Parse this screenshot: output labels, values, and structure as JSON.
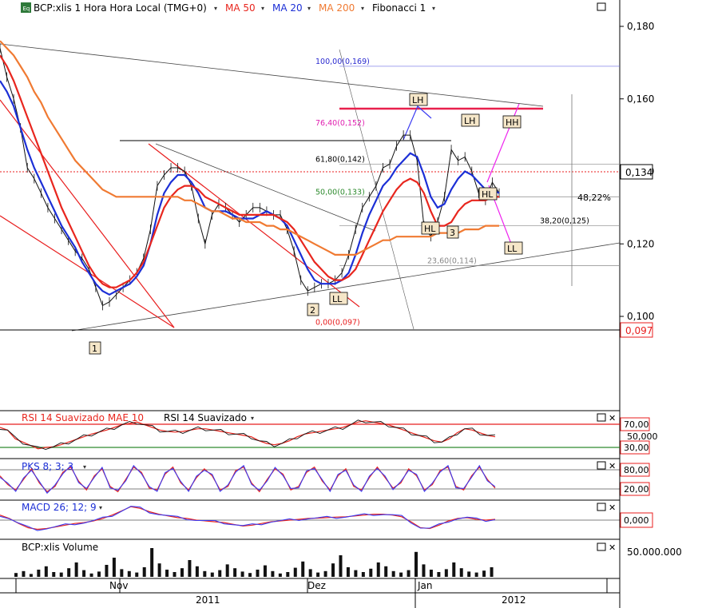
{
  "header": {
    "eq_badge": "Eq",
    "symbol": "BCP:xlis 1 Hora Hora Local (TMG+0)",
    "ma50": "MA 50",
    "ma20": "MA 20",
    "ma200": "MA 200",
    "fib": "Fibonacci 1"
  },
  "colors": {
    "ma50": "#e8261e",
    "ma20": "#1c2fd6",
    "ma200": "#f07a32",
    "fib": "#c040c0",
    "grid": "#999999"
  },
  "chart_data": [
    {
      "type": "line",
      "panel": "price",
      "y_ticks": [
        "0,180",
        "0,160",
        "0,140",
        "0,120",
        "0,100"
      ],
      "ylim": [
        0.091,
        0.184
      ],
      "last_price": "0,134",
      "support_price": "0,097",
      "fib_levels": [
        {
          "label": "100,00(0,169)",
          "value": 0.169
        },
        {
          "label": "76,40(0,152)",
          "value": 0.152
        },
        {
          "label": "61,80(0,142)",
          "value": 0.142
        },
        {
          "label": "50,00(0,133)",
          "value": 0.133
        },
        {
          "label": "38,20(0,125)",
          "value": 0.125
        },
        {
          "label": "23,60(0,114)",
          "value": 0.114
        },
        {
          "label": "0,00(0,097)",
          "value": 0.097
        }
      ],
      "annotations": [
        "LH",
        "LH",
        "HH",
        "HL",
        "HL",
        "LL",
        "LL",
        "1",
        "2",
        "3"
      ],
      "pct_label": "48,22%",
      "series": [
        {
          "name": "BCP:xlis",
          "values": [
            0.174,
            0.166,
            0.16,
            0.152,
            0.141,
            0.138,
            0.134,
            0.13,
            0.127,
            0.124,
            0.121,
            0.118,
            0.116,
            0.113,
            0.108,
            0.103,
            0.104,
            0.106,
            0.108,
            0.11,
            0.112,
            0.116,
            0.124,
            0.136,
            0.139,
            0.141,
            0.141,
            0.14,
            0.136,
            0.127,
            0.12,
            0.128,
            0.131,
            0.13,
            0.128,
            0.126,
            0.128,
            0.13,
            0.13,
            0.129,
            0.128,
            0.128,
            0.124,
            0.118,
            0.11,
            0.107,
            0.108,
            0.109,
            0.109,
            0.11,
            0.112,
            0.117,
            0.124,
            0.13,
            0.133,
            0.136,
            0.141,
            0.142,
            0.147,
            0.15,
            0.15,
            0.143,
            0.125,
            0.122,
            0.126,
            0.133,
            0.146,
            0.143,
            0.144,
            0.14,
            0.134,
            0.132,
            0.137,
            0.134
          ]
        },
        {
          "name": "MA 20",
          "values": [
            0.165,
            0.162,
            0.158,
            0.152,
            0.146,
            0.141,
            0.137,
            0.133,
            0.129,
            0.125,
            0.122,
            0.119,
            0.115,
            0.112,
            0.109,
            0.107,
            0.106,
            0.107,
            0.108,
            0.109,
            0.111,
            0.114,
            0.12,
            0.128,
            0.134,
            0.137,
            0.139,
            0.139,
            0.137,
            0.134,
            0.13,
            0.129,
            0.129,
            0.129,
            0.128,
            0.127,
            0.127,
            0.127,
            0.128,
            0.129,
            0.128,
            0.127,
            0.125,
            0.121,
            0.117,
            0.113,
            0.11,
            0.109,
            0.109,
            0.109,
            0.11,
            0.112,
            0.117,
            0.123,
            0.128,
            0.132,
            0.136,
            0.138,
            0.141,
            0.143,
            0.145,
            0.144,
            0.139,
            0.133,
            0.13,
            0.131,
            0.135,
            0.138,
            0.14,
            0.139,
            0.137,
            0.135,
            0.135,
            0.134
          ]
        },
        {
          "name": "MA 50",
          "values": [
            0.172,
            0.169,
            0.165,
            0.16,
            0.155,
            0.15,
            0.145,
            0.14,
            0.135,
            0.13,
            0.126,
            0.122,
            0.118,
            0.114,
            0.111,
            0.109,
            0.108,
            0.108,
            0.109,
            0.11,
            0.112,
            0.115,
            0.12,
            0.125,
            0.13,
            0.133,
            0.135,
            0.136,
            0.136,
            0.135,
            0.133,
            0.132,
            0.131,
            0.13,
            0.129,
            0.128,
            0.128,
            0.128,
            0.128,
            0.128,
            0.128,
            0.127,
            0.126,
            0.124,
            0.121,
            0.118,
            0.115,
            0.113,
            0.111,
            0.11,
            0.11,
            0.111,
            0.113,
            0.117,
            0.121,
            0.125,
            0.129,
            0.132,
            0.135,
            0.137,
            0.138,
            0.137,
            0.134,
            0.129,
            0.125,
            0.125,
            0.126,
            0.129,
            0.131,
            0.132,
            0.132,
            0.132,
            0.133,
            0.133
          ]
        },
        {
          "name": "MA 200",
          "values": [
            0.176,
            0.174,
            0.172,
            0.169,
            0.166,
            0.162,
            0.159,
            0.155,
            0.152,
            0.149,
            0.146,
            0.143,
            0.141,
            0.139,
            0.137,
            0.135,
            0.134,
            0.133,
            0.133,
            0.133,
            0.133,
            0.133,
            0.133,
            0.133,
            0.133,
            0.133,
            0.133,
            0.132,
            0.132,
            0.131,
            0.13,
            0.129,
            0.129,
            0.128,
            0.127,
            0.127,
            0.126,
            0.126,
            0.126,
            0.125,
            0.125,
            0.124,
            0.124,
            0.123,
            0.122,
            0.121,
            0.12,
            0.119,
            0.118,
            0.117,
            0.117,
            0.117,
            0.117,
            0.118,
            0.119,
            0.12,
            0.121,
            0.121,
            0.122,
            0.122,
            0.122,
            0.122,
            0.122,
            0.122,
            0.123,
            0.123,
            0.123,
            0.123,
            0.124,
            0.124,
            0.124,
            0.125,
            0.125,
            0.125
          ]
        }
      ]
    },
    {
      "type": "line",
      "panel": "rsi",
      "title": "RSI 14 Suavizado MAE 10",
      "title2": "RSI 14 Suavizado",
      "y_ticks": [
        "70,00",
        "30,00"
      ],
      "mid_tick": "50,000",
      "ylim": [
        20,
        80
      ],
      "series": [
        {
          "name": "RSI 14 Suavizado",
          "values": [
            62,
            58,
            45,
            40,
            35,
            30,
            32,
            33,
            36,
            40,
            44,
            48,
            52,
            55,
            58,
            62,
            66,
            68,
            70,
            66,
            62,
            58,
            56,
            55,
            56,
            58,
            60,
            60,
            58,
            56,
            54,
            52,
            50,
            48,
            42,
            38,
            36,
            38,
            42,
            48,
            52,
            54,
            56,
            58,
            60,
            62,
            66,
            70,
            72,
            70,
            68,
            66,
            62,
            58,
            54,
            50,
            46,
            42,
            40,
            45,
            54,
            60,
            58,
            54,
            50,
            48
          ]
        }
      ]
    },
    {
      "type": "line",
      "panel": "pks",
      "title": "PKS 8; 3; 3",
      "y_ticks": [
        "80,00",
        "20,00"
      ],
      "ylim": [
        0,
        100
      ],
      "series": [
        {
          "name": "PKS",
          "values": [
            60,
            35,
            20,
            50,
            80,
            40,
            15,
            30,
            70,
            85,
            45,
            20,
            60,
            80,
            30,
            15,
            50,
            85,
            70,
            25,
            20,
            65,
            85,
            40,
            20,
            55,
            80,
            60,
            20,
            30,
            75,
            85,
            40,
            15,
            50,
            80,
            65,
            20,
            30,
            70,
            85,
            45,
            20,
            60,
            80,
            30,
            20,
            55,
            85,
            55,
            25,
            40,
            80,
            60,
            20,
            35,
            75,
            85,
            30,
            20,
            60,
            85,
            50,
            25
          ]
        }
      ]
    },
    {
      "type": "line",
      "panel": "macd",
      "title": "MACD 26; 12; 9",
      "y_ticks": [
        "0,000"
      ],
      "ylim": [
        -1,
        1
      ],
      "series": [
        {
          "name": "MACD",
          "values": [
            0.3,
            0.1,
            -0.2,
            -0.45,
            -0.55,
            -0.5,
            -0.4,
            -0.3,
            -0.2,
            -0.15,
            -0.05,
            0.1,
            0.3,
            0.55,
            0.8,
            0.7,
            0.5,
            0.35,
            0.25,
            0.15,
            0.1,
            0.0,
            -0.05,
            -0.1,
            -0.15,
            -0.25,
            -0.35,
            -0.3,
            -0.2,
            -0.1,
            -0.05,
            0.0,
            0.05,
            0.1,
            0.12,
            0.15,
            0.18,
            0.2,
            0.25,
            0.3,
            0.35,
            0.35,
            0.3,
            0.2,
            -0.1,
            -0.45,
            -0.5,
            -0.3,
            -0.05,
            0.1,
            0.15,
            0.05,
            0.0,
            0.05
          ]
        }
      ]
    },
    {
      "type": "bar",
      "panel": "volume",
      "title": "BCP:xlis Volume",
      "y_ticks": [
        "50.000.000"
      ],
      "ylim": [
        0,
        70000000
      ],
      "values": [
        8,
        12,
        6,
        15,
        22,
        10,
        9,
        18,
        30,
        14,
        7,
        11,
        25,
        40,
        16,
        12,
        9,
        20,
        60,
        28,
        15,
        10,
        18,
        35,
        22,
        12,
        9,
        14,
        26,
        18,
        11,
        8,
        15,
        24,
        12,
        7,
        10,
        19,
        32,
        16,
        9,
        12,
        28,
        45,
        20,
        14,
        10,
        17,
        30,
        22,
        12,
        9,
        14,
        52,
        26,
        15,
        10,
        16,
        30,
        18,
        11,
        9,
        13,
        20
      ]
    },
    {
      "type": "table",
      "panel": "time_axis",
      "month_labels": [
        "Nov",
        "Dez",
        "Jan"
      ],
      "year_labels": [
        "2011",
        "2012"
      ]
    }
  ]
}
